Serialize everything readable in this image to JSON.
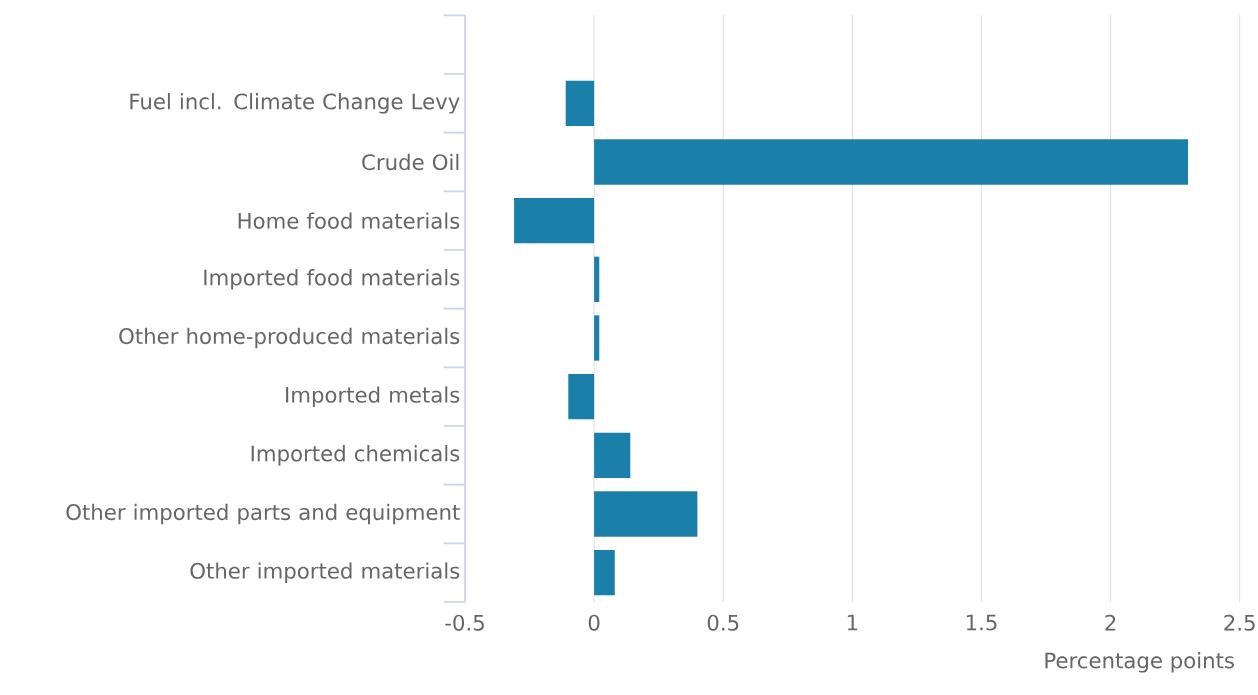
{
  "chart_data": {
    "type": "bar",
    "orientation": "horizontal",
    "categories": [
      null,
      "Fuel incl. Climate Change Levy",
      "Crude Oil",
      "Home food materials",
      "Imported food materials",
      "Other home-produced materials",
      "Imported metals",
      "Imported chemicals",
      "Other imported parts and equipment",
      "Other imported materials"
    ],
    "values": [
      null,
      -0.11,
      2.3,
      -0.31,
      0.02,
      0.02,
      -0.1,
      0.14,
      0.4,
      0.08
    ],
    "color": "#1a80aa",
    "xlabel": "Percentage points",
    "xlim": [
      -0.5,
      2.5
    ],
    "xticks": [
      -0.5,
      0,
      0.5,
      1,
      1.5,
      2,
      2.5
    ],
    "grid": "x"
  }
}
